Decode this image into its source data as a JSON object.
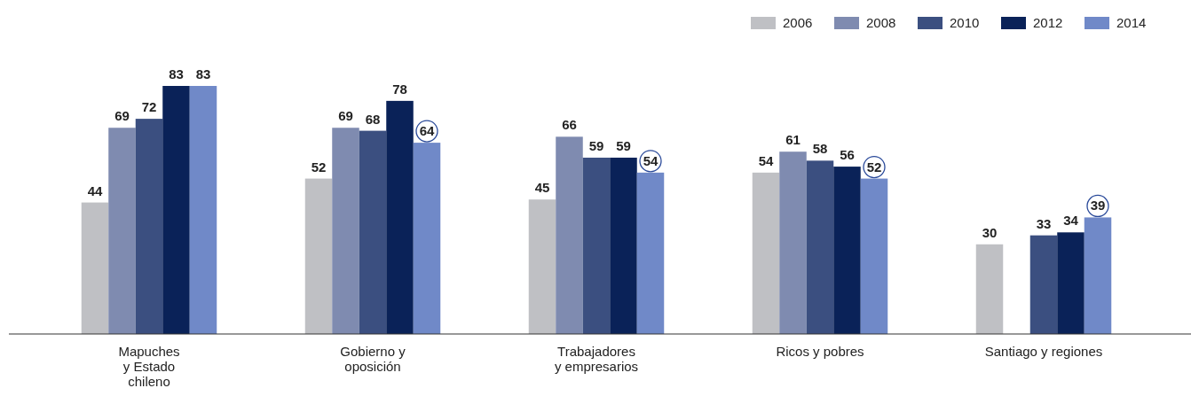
{
  "chart_data": {
    "type": "bar",
    "categories": [
      "Mapuches\ny Estado\nchileno",
      "Gobierno y\noposición",
      "Trabajadores\ny empresarios",
      "Ricos y pobres",
      "Santiago y regiones"
    ],
    "series": [
      {
        "name": "2006",
        "color": "#bfc0c4",
        "values": [
          44,
          52,
          45,
          54,
          30
        ]
      },
      {
        "name": "2008",
        "color": "#7f8bb0",
        "values": [
          69,
          69,
          66,
          61,
          null
        ]
      },
      {
        "name": "2010",
        "color": "#3b4f80",
        "values": [
          72,
          68,
          59,
          58,
          33
        ]
      },
      {
        "name": "2012",
        "color": "#0a2258",
        "values": [
          83,
          78,
          59,
          56,
          34
        ]
      },
      {
        "name": "2014",
        "color": "#7089c8",
        "values": [
          83,
          64,
          54,
          52,
          39
        ]
      }
    ],
    "data_labels": true,
    "legend": "top right"
  }
}
